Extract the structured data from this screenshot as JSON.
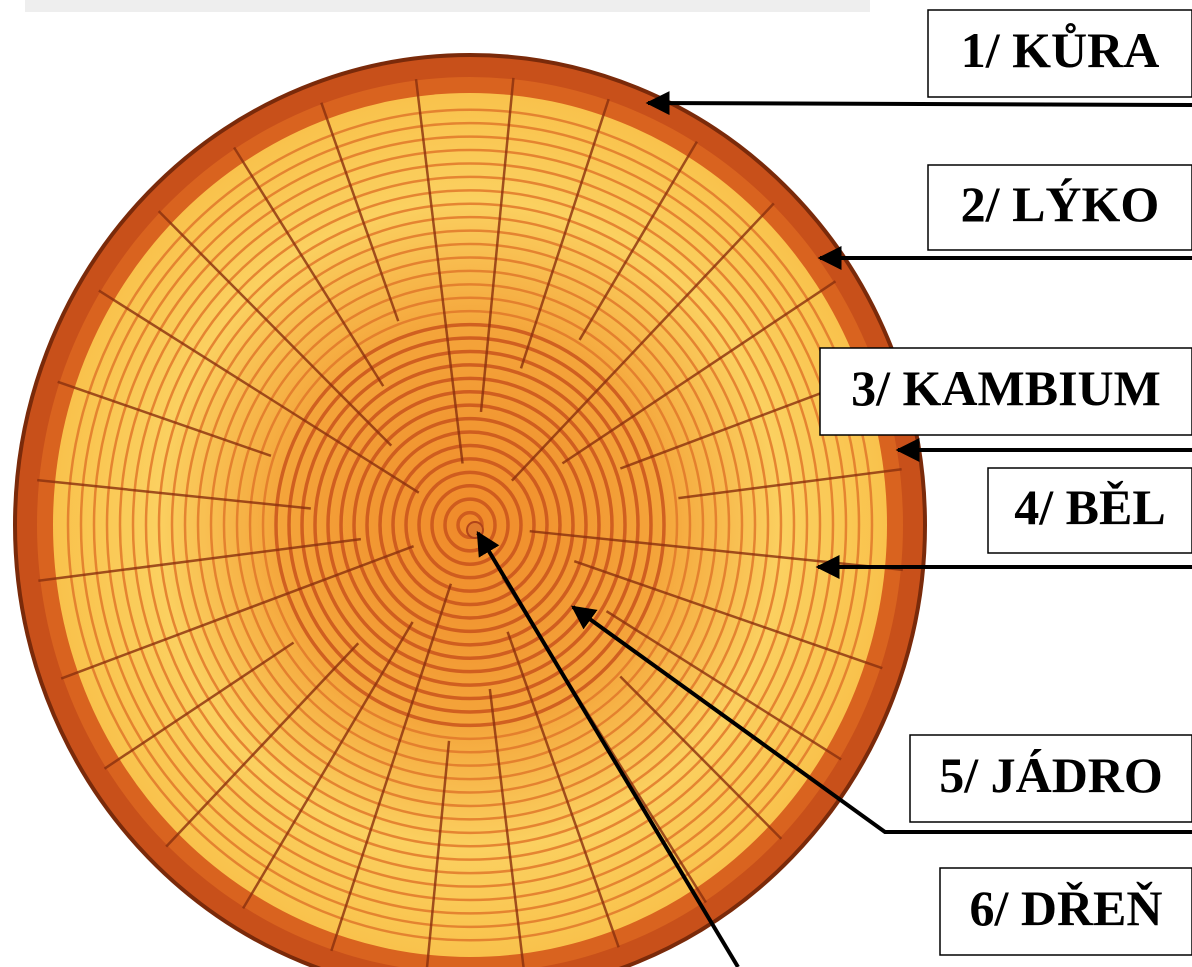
{
  "labels": [
    "1/ KŮRA",
    "2/ LÝKO",
    "3/ KAMBIUM",
    "4/ BĚL",
    "5/ JÁDRO",
    "6/ DŘEŇ"
  ]
}
